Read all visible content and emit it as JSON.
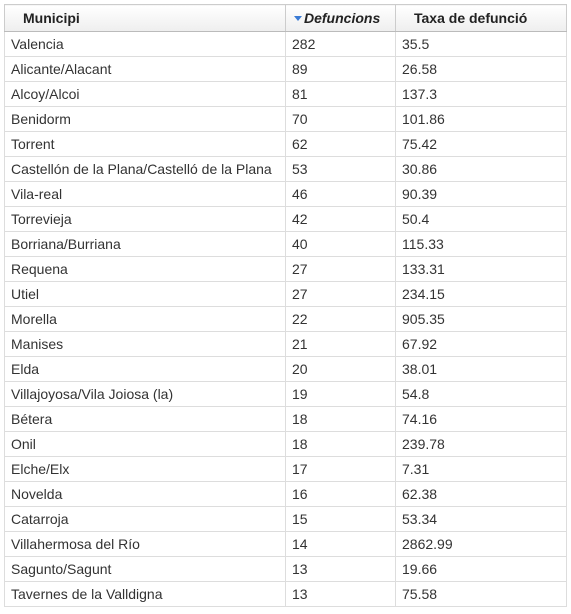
{
  "table": {
    "columns": [
      "Municipi",
      "Defuncions",
      "Taxa de defunció"
    ],
    "sort": {
      "column": "Defuncions",
      "direction": "descending",
      "icon": "sort-descending-icon",
      "icon_color": "#3a7bd5"
    },
    "rows": [
      [
        "Valencia",
        "282",
        "35.5"
      ],
      [
        "Alicante/Alacant",
        "89",
        "26.58"
      ],
      [
        "Alcoy/Alcoi",
        "81",
        "137.3"
      ],
      [
        "Benidorm",
        "70",
        "101.86"
      ],
      [
        "Torrent",
        "62",
        "75.42"
      ],
      [
        "Castellón de la Plana/Castelló de la Plana",
        "53",
        "30.86"
      ],
      [
        "Vila-real",
        "46",
        "90.39"
      ],
      [
        "Torrevieja",
        "42",
        "50.4"
      ],
      [
        "Borriana/Burriana",
        "40",
        "115.33"
      ],
      [
        "Requena",
        "27",
        "133.31"
      ],
      [
        "Utiel",
        "27",
        "234.15"
      ],
      [
        "Morella",
        "22",
        "905.35"
      ],
      [
        "Manises",
        "21",
        "67.92"
      ],
      [
        "Elda",
        "20",
        "38.01"
      ],
      [
        "Villajoyosa/Vila Joiosa (la)",
        "19",
        "54.8"
      ],
      [
        "Bétera",
        "18",
        "74.16"
      ],
      [
        "Onil",
        "18",
        "239.78"
      ],
      [
        "Elche/Elx",
        "17",
        "7.31"
      ],
      [
        "Novelda",
        "16",
        "62.38"
      ],
      [
        "Catarroja",
        "15",
        "53.34"
      ],
      [
        "Villahermosa del Río",
        "14",
        "2862.99"
      ],
      [
        "Sagunto/Sagunt",
        "13",
        "19.66"
      ],
      [
        "Tavernes de la Valldigna",
        "13",
        "75.58"
      ]
    ]
  }
}
